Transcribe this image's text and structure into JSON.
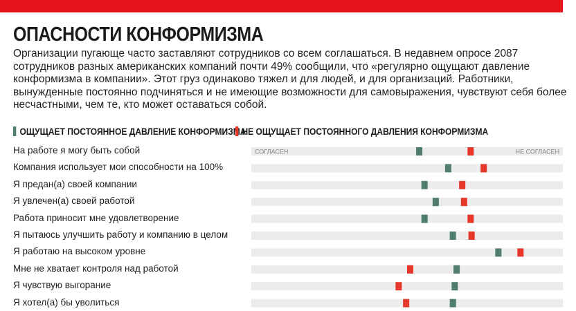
{
  "title": "ОПАСНОСТИ КОНФОРМИЗМА",
  "intro": "Организации пугающе часто заставляют сотрудников со всем соглашаться. В недавнем опросе 2087 сотрудников разных американских компаний почти 49% сообщили, что «регулярно ощущают давление конформизма в компании». Этот груз одинаково тяжел и для людей, и для организаций. Работники, вынужденные постоянно подчиняться и не имеющие возможности для самовыражения, чувствуют себя более несчастными, чем те, кто может оставаться собой.",
  "colors": {
    "accent": "#e4131a",
    "green": "#4f7d6f",
    "red": "#e6372b",
    "track": "#ececec"
  },
  "legend": {
    "pressured": "ОЩУЩАЕТ ПОСТОЯННОЕ ДАВЛЕНИЕ КОНФОРМИЗМА",
    "not_pressured": "НЕ ОЩУЩАЕТ ПОСТОЯННОГО ДАВЛЕНИЯ КОНФОРМИЗМА"
  },
  "chart_data": {
    "type": "dot",
    "axis_left_label": "СОГЛАСЕН",
    "axis_right_label": "НЕ СОГЛАСЕН",
    "xlim": [
      0,
      1
    ],
    "categories": [
      "На работе я могу быть собой",
      "Компания использует мои способности на 100%",
      "Я предан(а) своей компании",
      "Я увлечен(а) своей работой",
      "Работа приносит мне удовлетворение",
      "Я пытаюсь улучшить работу и компанию в целом",
      "Я работаю на высоком уровне",
      "Мне не хватает контроля над работой",
      "Я чувствую выгорание",
      "Я хотел(а) бы уволиться"
    ],
    "series": [
      {
        "name": "ОЩУЩАЕТ ПОСТОЯННОЕ ДАВЛЕНИЕ КОНФОРМИЗМА",
        "color": "#4f7d6f",
        "values": [
          0.539,
          0.632,
          0.556,
          0.592,
          0.556,
          0.647,
          0.793,
          0.659,
          0.653,
          0.647
        ]
      },
      {
        "name": "НЕ ОЩУЩАЕТ ПОСТОЯННОГО ДАВЛЕНИЯ КОНФОРМИЗМА",
        "color": "#e6372b",
        "values": [
          0.704,
          0.746,
          0.677,
          0.683,
          0.704,
          0.707,
          0.864,
          0.51,
          0.473,
          0.497
        ]
      }
    ]
  }
}
